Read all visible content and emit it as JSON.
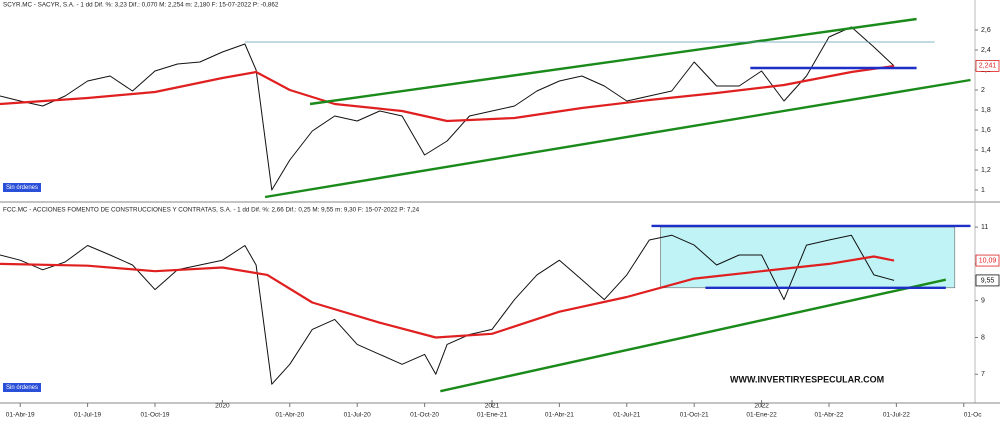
{
  "chart_data": [
    {
      "type": "line",
      "title": "SCYR.MC - SACYR, S.A. - 1 dd  Dif. %: 3,23  Dif.: 0,070  M: 2,254  m: 2,180  F: 15-07-2022  P: -0,862",
      "status_label": "Sin órdenes",
      "xlim": [
        -0.9,
        42.5
      ],
      "ylim": [
        0.9,
        2.8
      ],
      "yticks": [
        1,
        {
          "value": 1.2,
          "label": "1,2"
        },
        {
          "value": 1.4,
          "label": "1,4"
        },
        {
          "value": 1.6,
          "label": "1,6"
        },
        {
          "value": 1.8,
          "label": "1,8"
        },
        2,
        {
          "value": 2.2,
          "label": "2,2"
        },
        {
          "value": 2.4,
          "label": "2,4"
        },
        {
          "value": 2.6,
          "label": "2,6"
        }
      ],
      "series": [
        {
          "color": "#111111",
          "x": [
            -0.9,
            0,
            1,
            2,
            3,
            4,
            5,
            6,
            7,
            8,
            9,
            10,
            10.5,
            11.2,
            12,
            13,
            14,
            15,
            16,
            17,
            18,
            19,
            20,
            21,
            22,
            23,
            24,
            25,
            26,
            27,
            28,
            29,
            30,
            31,
            32,
            33,
            34,
            35,
            36,
            37,
            38,
            38.9
          ],
          "values": [
            1.94,
            1.89,
            1.84,
            1.94,
            2.09,
            2.14,
            1.99,
            2.19,
            2.26,
            2.28,
            2.38,
            2.46,
            2.2,
            1.0,
            1.3,
            1.59,
            1.74,
            1.69,
            1.79,
            1.74,
            1.35,
            1.49,
            1.74,
            1.79,
            1.84,
            1.99,
            2.09,
            2.14,
            2.04,
            1.89,
            1.94,
            1.99,
            2.28,
            2.04,
            2.04,
            2.19,
            1.89,
            2.14,
            2.53,
            2.63,
            2.43,
            2.24
          ]
        },
        {
          "color": "#e02020",
          "x": [
            -0.9,
            3,
            6,
            9,
            10.5,
            12,
            14,
            17,
            19,
            22,
            25,
            28,
            31,
            34,
            37,
            38.9
          ],
          "values": [
            1.86,
            1.92,
            1.98,
            2.12,
            2.18,
            2.0,
            1.86,
            1.79,
            1.69,
            1.72,
            1.82,
            1.9,
            1.97,
            2.05,
            2.18,
            2.24
          ]
        }
      ],
      "lines": [
        {
          "color": "#1a8a1a",
          "x": [
            12.9,
            39.9
          ],
          "values": [
            1.86,
            2.71
          ]
        },
        {
          "color": "#1a8a1a",
          "x": [
            10.9,
            42.3
          ],
          "values": [
            0.93,
            2.1
          ]
        },
        {
          "color": "#1e2fc8",
          "x": [
            32.5,
            39.9
          ],
          "values": [
            2.22,
            2.22
          ]
        },
        {
          "color": "#5a9ab5",
          "x": [
            10.0,
            40.7
          ],
          "values": [
            2.48,
            2.48
          ]
        }
      ],
      "price_labels": [
        {
          "value": 2.241,
          "label": "2,241",
          "color": "#e02020"
        }
      ]
    },
    {
      "type": "line",
      "title": "FCC.MC - ACCIONES FOMENTO DE CONSTRUCCIONES Y CONTRATAS, S.A. - 1 dd  Dif. %: 2,66  Dif.: 0,25  M: 9,55  m: 9,30  F: 15-07-2022  P: 7,24",
      "status_label": "Sin órdenes",
      "watermark": "WWW.INVERTIRYESPECULAR.COM",
      "xlim": [
        -0.9,
        42.5
      ],
      "ylim": [
        6.3,
        11.6
      ],
      "yticks": [
        7,
        8,
        9,
        10,
        11
      ],
      "series": [
        {
          "color": "#111111",
          "x": [
            -0.9,
            0,
            1,
            2,
            3,
            4,
            5,
            6,
            7,
            8,
            9,
            10,
            10.5,
            11.2,
            12,
            13,
            14,
            15,
            16,
            17,
            18,
            18.5,
            19,
            20,
            21,
            22,
            23,
            24,
            25,
            26,
            27,
            28,
            29,
            30,
            31,
            32,
            33,
            34,
            35,
            36,
            37,
            38,
            38.9
          ],
          "values": [
            10.24,
            10.1,
            9.84,
            10.05,
            10.5,
            10.24,
            9.97,
            9.3,
            9.84,
            9.97,
            10.1,
            10.5,
            9.97,
            6.73,
            7.27,
            8.22,
            8.49,
            7.81,
            7.54,
            7.27,
            7.54,
            7.0,
            7.81,
            8.08,
            8.22,
            9.03,
            9.7,
            10.1,
            9.57,
            9.03,
            9.7,
            10.65,
            10.78,
            10.51,
            9.97,
            10.24,
            10.24,
            9.03,
            10.51,
            10.65,
            10.78,
            9.7,
            9.55
          ]
        },
        {
          "color": "#e02020",
          "x": [
            -0.9,
            3,
            6,
            9,
            11,
            13,
            16,
            18.5,
            21,
            24,
            27,
            30,
            33,
            36,
            38,
            38.9
          ],
          "values": [
            10.0,
            9.95,
            9.8,
            9.9,
            9.7,
            8.95,
            8.4,
            8.0,
            8.1,
            8.7,
            9.1,
            9.6,
            9.8,
            10.0,
            10.2,
            10.09
          ]
        }
      ],
      "boxes": [
        {
          "color": "#bff3f6",
          "x": [
            28.5,
            41.6
          ],
          "values": [
            9.35,
            11.0
          ]
        }
      ],
      "lines": [
        {
          "color": "#1a8a1a",
          "x": [
            18.7,
            41.2
          ],
          "values": [
            6.54,
            9.57
          ]
        },
        {
          "color": "#1e2fc8",
          "x": [
            28.1,
            42.3
          ],
          "values": [
            11.03,
            11.03
          ]
        },
        {
          "color": "#1e2fc8",
          "x": [
            30.5,
            41.2
          ],
          "values": [
            9.35,
            9.35
          ]
        }
      ],
      "price_labels": [
        {
          "value": 10.09,
          "label": "10,09",
          "color": "#e02020"
        },
        {
          "value": 9.55,
          "label": "9,55",
          "color": "#111111"
        }
      ],
      "xticks": [
        {
          "value": 0,
          "label": "01-Abr-19"
        },
        {
          "value": 3,
          "label": "01-Jul-19"
        },
        {
          "value": 6,
          "label": "01-Oct-19"
        },
        {
          "value": 12,
          "label": "01-Abr-20"
        },
        {
          "value": 15,
          "label": "01-Jul-20"
        },
        {
          "value": 18,
          "label": "01-Oct-20"
        },
        {
          "value": 21,
          "label": "01-Ene-21"
        },
        {
          "value": 24,
          "label": "01-Abr-21"
        },
        {
          "value": 27,
          "label": "01-Jul-21"
        },
        {
          "value": 30,
          "label": "01-Oct-21"
        },
        {
          "value": 33,
          "label": "01-Ene-22"
        },
        {
          "value": 36,
          "label": "01-Abr-22"
        },
        {
          "value": 39,
          "label": "01-Jul-22"
        },
        {
          "value": 42,
          "label": "01-Oc"
        }
      ],
      "year_ticks": [
        {
          "value": 9,
          "label": "2020"
        },
        {
          "value": 21,
          "label": "2021"
        },
        {
          "value": 33,
          "label": "2022"
        }
      ]
    }
  ]
}
